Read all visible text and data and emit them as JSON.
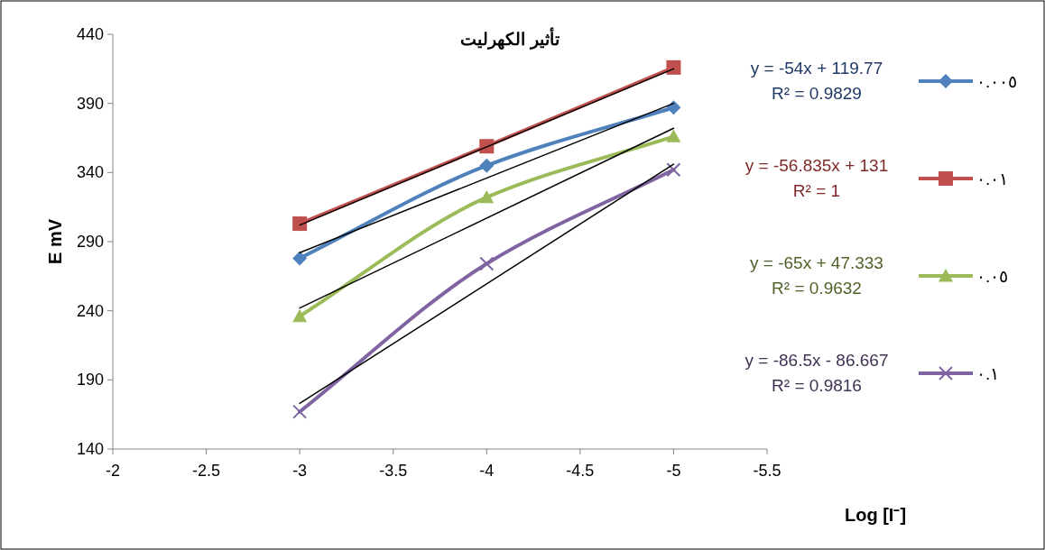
{
  "chart_data": {
    "type": "line",
    "title": "تأثير الكهرليت",
    "xlabel": "Log [I⁻]",
    "ylabel": "E mV",
    "xlim": [
      -2,
      -5.5
    ],
    "xticks": [
      -2,
      -2.5,
      -3,
      -3.5,
      -4,
      -4.5,
      -5,
      -5.5
    ],
    "ylim": [
      140,
      440
    ],
    "yticks": [
      140,
      190,
      240,
      290,
      340,
      390,
      440
    ],
    "grid": false,
    "legend": "right",
    "line_style": "solid",
    "x": [
      -3,
      -4,
      -5
    ],
    "series": [
      {
        "name": "٠.٠٠٥",
        "color": "#4f81bd",
        "marker": "diamond",
        "values": [
          278,
          345,
          387
        ]
      },
      {
        "name": "٠.٠١",
        "color": "#c0504d",
        "marker": "square",
        "values": [
          303,
          359,
          416
        ]
      },
      {
        "name": "٠.٠٥",
        "color": "#9bbb59",
        "marker": "triangle",
        "values": [
          236,
          322,
          366
        ]
      },
      {
        "name": "٠.١",
        "color": "#8064a2",
        "marker": "cross",
        "values": [
          167,
          274,
          342
        ]
      },
      {
        "type": "line",
        "color": "#000000",
        "marker": "none",
        "values": [
          282,
          null,
          390
        ]
      },
      {
        "type": "line",
        "color": "#000000",
        "marker": "none",
        "values": [
          302,
          null,
          415
        ]
      },
      {
        "type": "line",
        "color": "#000000",
        "marker": "none",
        "values": [
          242,
          null,
          372
        ]
      },
      {
        "type": "line",
        "color": "#000000",
        "marker": "none",
        "values": [
          173,
          null,
          346
        ]
      }
    ],
    "annotations": [
      "y = -54x + 119.77\nR² = 0.9829",
      "y = -56.835x + 131\nR² = 1",
      "y = -65x + 47.333\nR² = 0.9632",
      "y = -86.5x - 86.667\nR² = 0.9816"
    ]
  }
}
